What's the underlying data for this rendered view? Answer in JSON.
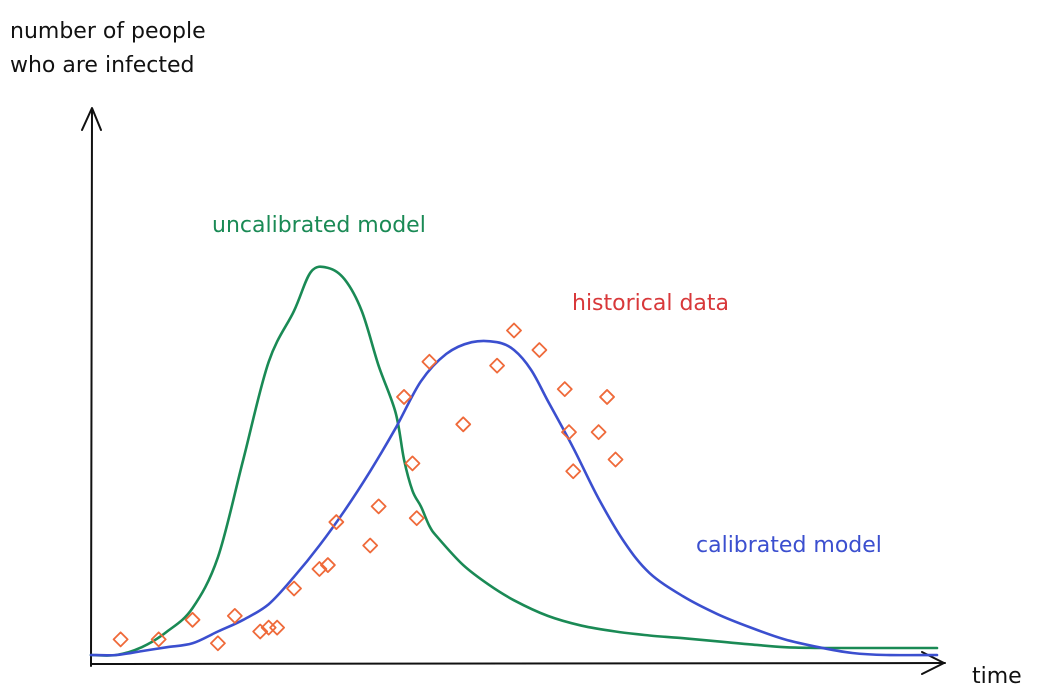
{
  "chart_data": {
    "type": "line",
    "title": "",
    "xlabel": "time",
    "ylabel_lines": [
      "number of people",
      "who are infected"
    ],
    "xlim": [
      0,
      100
    ],
    "ylim": [
      0,
      100
    ],
    "grid": false,
    "legend": "none",
    "colors": {
      "uncalibrated": "#1a8a55",
      "calibrated": "#3b4fcf",
      "historical": "#ef6a3a",
      "historical_label": "#d8383a",
      "axis": "#111111"
    },
    "annotations": {
      "uncalibrated": "uncalibrated model",
      "historical": "historical data",
      "calibrated": "calibrated model"
    },
    "series": [
      {
        "name": "uncalibrated model",
        "x": [
          0,
          3,
          6,
          9,
          12,
          15,
          18,
          21,
          24,
          26,
          28,
          30,
          32,
          34,
          36,
          37,
          38,
          39,
          40,
          41,
          44,
          47,
          50,
          54,
          58,
          62,
          66,
          70,
          74,
          78,
          82,
          86,
          90,
          94,
          100
        ],
        "values": [
          0,
          0,
          2,
          6,
          12,
          25,
          50,
          75,
          88,
          98,
          99,
          96,
          88,
          74,
          62,
          50,
          42,
          38,
          33,
          30,
          23,
          18,
          14,
          10,
          7.5,
          6,
          5,
          4.3,
          3.5,
          2.7,
          2,
          1.8,
          1.8,
          1.8,
          1.8
        ]
      },
      {
        "name": "calibrated model",
        "x": [
          0,
          3,
          6,
          9,
          12,
          15,
          18,
          21,
          24,
          27,
          30,
          33,
          36,
          39,
          42,
          45,
          48,
          50,
          52,
          54,
          57,
          60,
          63,
          66,
          70,
          74,
          78,
          82,
          86,
          90,
          94,
          100
        ],
        "values": [
          0,
          0,
          1,
          2,
          3,
          6,
          9,
          13,
          20,
          28,
          37,
          47,
          58,
          70,
          77,
          80,
          80,
          78,
          73,
          65,
          53,
          40,
          29,
          21,
          15,
          10.5,
          7,
          4,
          2,
          0.5,
          0,
          0
        ]
      },
      {
        "name": "historical data",
        "kind": "scatter",
        "x": [
          3.5,
          8,
          12,
          15,
          17,
          20,
          21,
          22,
          24,
          27,
          28,
          29,
          33,
          34,
          37,
          38,
          38.5,
          40,
          44,
          48,
          50,
          53,
          56,
          56.5,
          57,
          60,
          61,
          62
        ],
        "values": [
          4,
          4,
          9,
          3,
          10,
          6,
          7,
          7,
          17,
          22,
          23,
          34,
          28,
          38,
          66,
          49,
          35,
          75,
          59,
          74,
          83,
          78,
          68,
          57,
          47,
          57,
          66,
          50
        ]
      }
    ]
  }
}
